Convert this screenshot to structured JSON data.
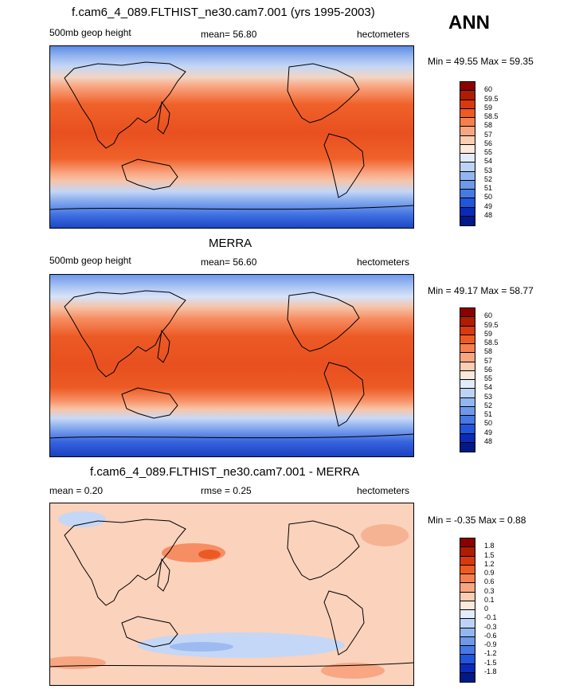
{
  "season": "ANN",
  "panels": [
    {
      "title": "f.cam6_4_089.FLTHIST_ne30.cam7.001 (yrs 1995-2003)",
      "left_label": "500mb geop height",
      "mean_label": "mean=  56.80",
      "units": "hectometers",
      "minmax": "Min =  49.55 Max =  59.35"
    },
    {
      "title": "MERRA",
      "left_label": "500mb geop height",
      "mean_label": "mean=  56.60",
      "units": "hectometers",
      "minmax": "Min =  49.17 Max =  58.77"
    },
    {
      "title": "f.cam6_4_089.FLTHIST_ne30.cam7.001 - MERRA",
      "left_label": "mean =   0.20",
      "mean_label": "rmse =   0.25",
      "units": "hectometers",
      "minmax": "Min =  -0.35 Max =   0.88"
    }
  ],
  "colorbar_abs": {
    "labels": [
      "60",
      "59.5",
      "59",
      "58.5",
      "58",
      "57",
      "56",
      "55",
      "54",
      "53",
      "52",
      "51",
      "50",
      "49",
      "48"
    ],
    "colors": [
      "#8b0000",
      "#b01c00",
      "#d83a0c",
      "#ef5a22",
      "#f57f4f",
      "#f8a682",
      "#fbcdb2",
      "#fde9dc",
      "#e2ecfb",
      "#bcd3f6",
      "#94b6f0",
      "#6e98ea",
      "#4679e4",
      "#2055dc",
      "#0a2bb8",
      "#001a8a"
    ]
  },
  "colorbar_diff": {
    "labels": [
      "1.8",
      "1.5",
      "1.2",
      "0.9",
      "0.6",
      "0.3",
      "0.1",
      "0",
      "-0.1",
      "-0.3",
      "-0.6",
      "-0.9",
      "-1.2",
      "-1.5",
      "-1.8"
    ],
    "colors": [
      "#8b0000",
      "#b01c00",
      "#d83a0c",
      "#ef5a22",
      "#f57f4f",
      "#f8a682",
      "#fbcdb2",
      "#fde9dc",
      "#e2ecfb",
      "#bcd3f6",
      "#94b6f0",
      "#6e98ea",
      "#4679e4",
      "#2055dc",
      "#0a2bb8",
      "#001a8a"
    ]
  }
}
